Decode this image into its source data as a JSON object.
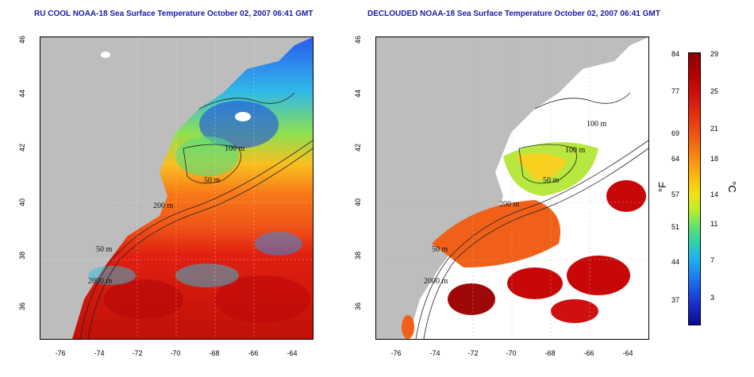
{
  "left_panel": {
    "title": "RU COOL NOAA-18 Sea Surface Temperature October 02, 2007 06:41 GMT"
  },
  "right_panel": {
    "title": "DECLOUDED NOAA-18 Sea Surface Temperature October 02, 2007 06:41 GMT"
  },
  "axes": {
    "lat_ticks": [
      "36",
      "38",
      "40",
      "42",
      "44",
      "46"
    ],
    "lon_ticks": [
      "-76",
      "-74",
      "-72",
      "-70",
      "-68",
      "-66",
      "-64"
    ]
  },
  "contour_labels": [
    "100 m",
    "50 m",
    "200 m",
    "50 m",
    "2000 m",
    "100 m",
    "100 m",
    "50 m",
    "200 m",
    "50 m",
    "2000 m"
  ],
  "colorbar": {
    "fahrenheit_ticks": [
      "84",
      "77",
      "69",
      "64",
      "57",
      "51",
      "44",
      "37"
    ],
    "celsius_ticks": [
      "29",
      "25",
      "21",
      "18",
      "14",
      "11",
      "7",
      "3"
    ],
    "fahrenheit_unit": "°F",
    "celsius_unit": "°C"
  },
  "colors": {
    "land": "#bdbdbd",
    "title": "#1a1aa8",
    "cloud": "#ffffff"
  }
}
